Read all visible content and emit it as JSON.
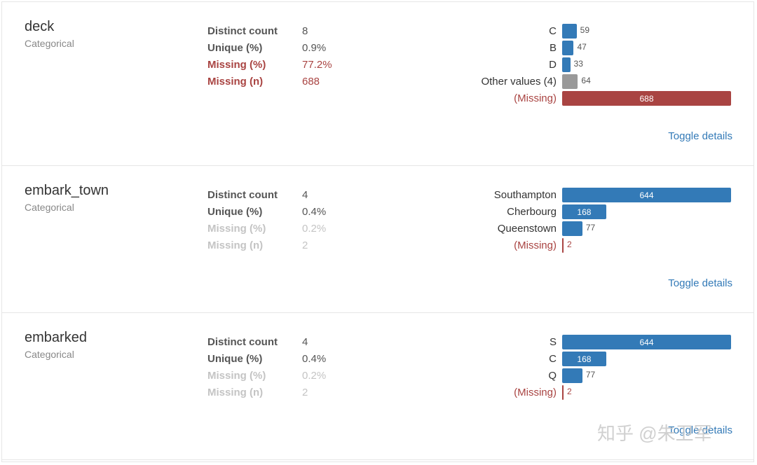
{
  "variables": [
    {
      "name": "deck",
      "type": "Categorical",
      "stats": [
        {
          "label": "Distinct count",
          "value": "8",
          "color": "#555555"
        },
        {
          "label": "Unique (%)",
          "value": "0.9%",
          "color": "#555555"
        },
        {
          "label": "Missing (%)",
          "value": "77.2%",
          "color": "#a94442"
        },
        {
          "label": "Missing (n)",
          "value": "688",
          "color": "#a94442"
        }
      ],
      "bars": [
        {
          "label": "C",
          "count": 59,
          "color": "#337ab7"
        },
        {
          "label": "B",
          "count": 47,
          "color": "#337ab7"
        },
        {
          "label": "D",
          "count": 33,
          "color": "#337ab7"
        },
        {
          "label": "Other values (4)",
          "count": 64,
          "color": "#999999"
        },
        {
          "label": "(Missing)",
          "count": 688,
          "color": "#a94442"
        }
      ],
      "toggle": "Toggle details"
    },
    {
      "name": "embark_town",
      "type": "Categorical",
      "stats": [
        {
          "label": "Distinct count",
          "value": "4",
          "color": "#555555"
        },
        {
          "label": "Unique (%)",
          "value": "0.4%",
          "color": "#555555"
        },
        {
          "label": "Missing (%)",
          "value": "0.2%",
          "color": "#c4c4c4"
        },
        {
          "label": "Missing (n)",
          "value": "2",
          "color": "#c4c4c4"
        }
      ],
      "bars": [
        {
          "label": "Southampton",
          "count": 644,
          "color": "#337ab7"
        },
        {
          "label": "Cherbourg",
          "count": 168,
          "color": "#337ab7"
        },
        {
          "label": "Queenstown",
          "count": 77,
          "color": "#337ab7"
        },
        {
          "label": "(Missing)",
          "count": 2,
          "color": "#a94442"
        }
      ],
      "toggle": "Toggle details"
    },
    {
      "name": "embarked",
      "type": "Categorical",
      "stats": [
        {
          "label": "Distinct count",
          "value": "4",
          "color": "#555555"
        },
        {
          "label": "Unique (%)",
          "value": "0.4%",
          "color": "#555555"
        },
        {
          "label": "Missing (%)",
          "value": "0.2%",
          "color": "#c4c4c4"
        },
        {
          "label": "Missing (n)",
          "value": "2",
          "color": "#c4c4c4"
        }
      ],
      "bars": [
        {
          "label": "S",
          "count": 644,
          "color": "#337ab7"
        },
        {
          "label": "C",
          "count": 168,
          "color": "#337ab7"
        },
        {
          "label": "Q",
          "count": 77,
          "color": "#337ab7"
        },
        {
          "label": "(Missing)",
          "count": 2,
          "color": "#a94442"
        }
      ],
      "toggle": "Toggle details"
    }
  ],
  "watermark": "知乎 @朱卫军"
}
